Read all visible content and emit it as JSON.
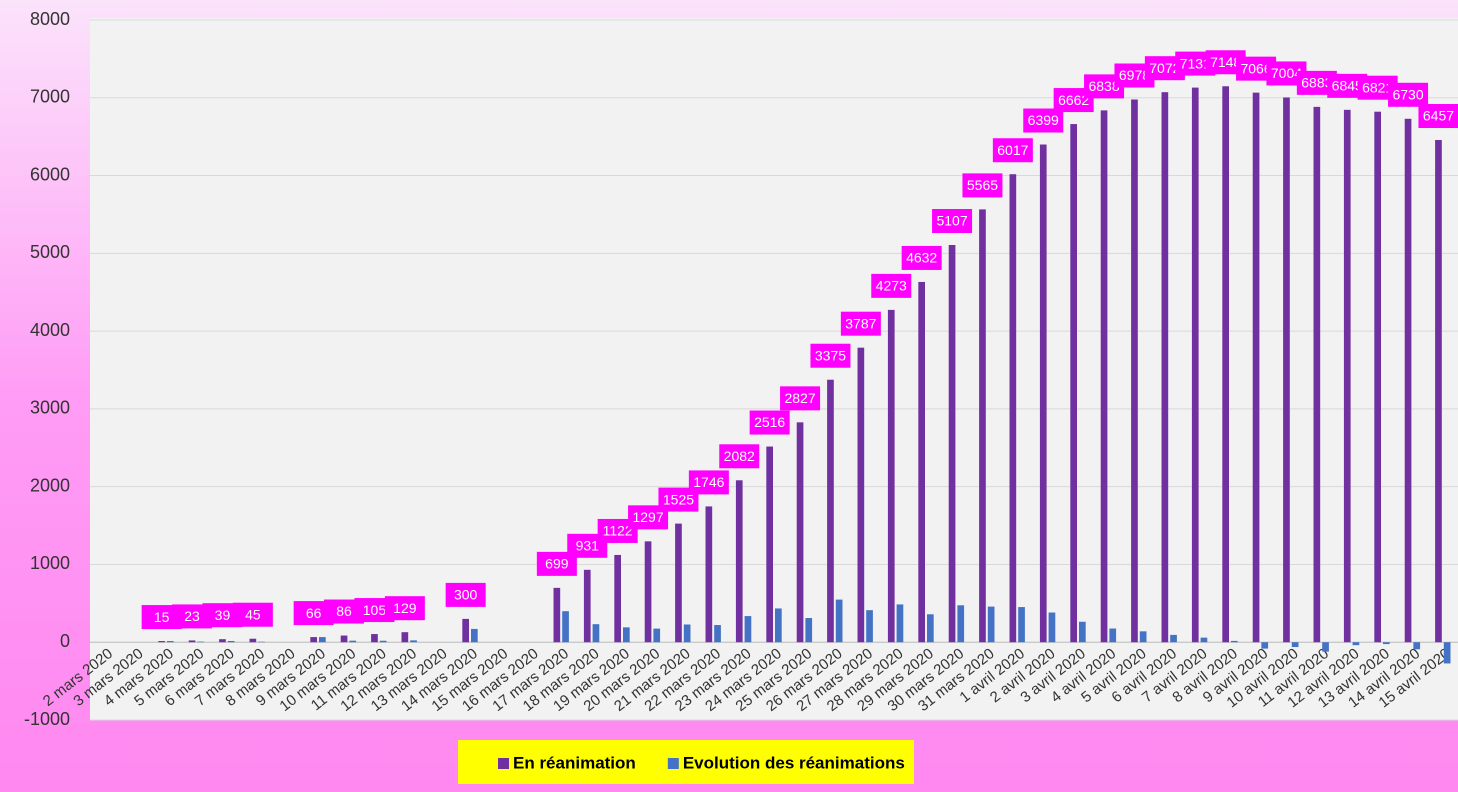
{
  "chart_data": {
    "type": "bar",
    "categories": [
      "2 mars 2020",
      "3 mars 2020",
      "4 mars 2020",
      "5 mars 2020",
      "6 mars 2020",
      "7 mars 2020",
      "8 mars 2020",
      "9 mars 2020",
      "10 mars 2020",
      "11 mars 2020",
      "12 mars 2020",
      "13 mars 2020",
      "14 mars 2020",
      "15 mars 2020",
      "16 mars 2020",
      "17 mars 2020",
      "18 mars 2020",
      "19 mars 2020",
      "20 mars 2020",
      "21 mars 2020",
      "22 mars 2020",
      "23 mars 2020",
      "24 mars 2020",
      "25 mars 2020",
      "26 mars 2020",
      "27 mars 2020",
      "28 mars 2020",
      "29 mars 2020",
      "30 mars 2020",
      "31 mars 2020",
      "1 avril 2020",
      "2 avril 2020",
      "3 avril 2020",
      "4 avril 2020",
      "5 avril 2020",
      "6 avril 2020",
      "7 avril 2020",
      "8 avril 2020",
      "9 avril 2020",
      "10 avril 2020",
      "11 avril 2020",
      "12 avril 2020",
      "13 avril 2020",
      "14 avril 2020",
      "15 avril 2020"
    ],
    "series": [
      {
        "name": "En réanimation",
        "color": "#7030a0",
        "labels": true,
        "values": [
          null,
          null,
          15,
          23,
          39,
          45,
          null,
          66,
          86,
          105,
          129,
          null,
          300,
          null,
          null,
          699,
          931,
          1122,
          1297,
          1525,
          1746,
          2082,
          2516,
          2827,
          3375,
          3787,
          4273,
          4632,
          5107,
          5565,
          6017,
          6399,
          6662,
          6838,
          6978,
          7072,
          7131,
          7148,
          7066,
          7004,
          6883,
          6845,
          6821,
          6730,
          6457
        ]
      },
      {
        "name": "Evolution des réanimations",
        "color": "#4472c4",
        "values": [
          null,
          null,
          15,
          8,
          16,
          6,
          null,
          66,
          20,
          19,
          24,
          null,
          171,
          null,
          null,
          399,
          232,
          191,
          175,
          228,
          221,
          336,
          434,
          311,
          548,
          412,
          486,
          359,
          475,
          458,
          452,
          382,
          263,
          176,
          140,
          94,
          59,
          17,
          -82,
          -62,
          -121,
          -38,
          -24,
          -91,
          -273
        ]
      }
    ],
    "ylim": [
      -1000,
      8000
    ],
    "yticks": [
      -1000,
      0,
      1000,
      2000,
      3000,
      4000,
      5000,
      6000,
      7000,
      8000
    ],
    "grid": true,
    "legend": "bottom"
  }
}
